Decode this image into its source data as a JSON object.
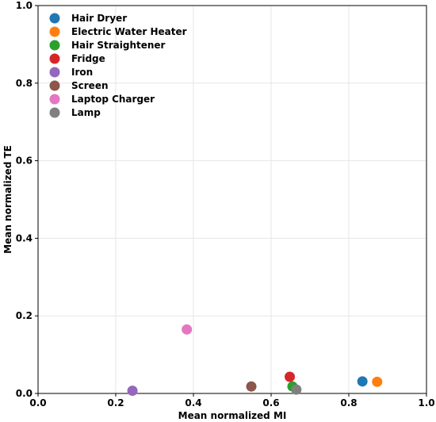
{
  "chart_data": {
    "type": "scatter",
    "xlabel": "Mean normalized MI",
    "ylabel": "Mean normalized TE",
    "xlim": [
      0,
      1
    ],
    "ylim": [
      0,
      1
    ],
    "grid": true,
    "legend_position": "top-left",
    "x_ticks": [
      "0.0",
      "0.2",
      "0.4",
      "0.6",
      "0.8",
      "1.0"
    ],
    "y_ticks": [
      "0.0",
      "0.2",
      "0.4",
      "0.6",
      "0.8",
      "1.0"
    ],
    "series": [
      {
        "name": "Hair Dryer",
        "color": "#1f77b4",
        "x": 0.835,
        "y": 0.031
      },
      {
        "name": "Electric Water Heater",
        "color": "#ff7f0e",
        "x": 0.873,
        "y": 0.03
      },
      {
        "name": "Hair Straightener",
        "color": "#2ca02c",
        "x": 0.655,
        "y": 0.018
      },
      {
        "name": "Fridge",
        "color": "#d62728",
        "x": 0.648,
        "y": 0.043
      },
      {
        "name": "Iron",
        "color": "#9467bd",
        "x": 0.243,
        "y": 0.007
      },
      {
        "name": "Screen",
        "color": "#8c564b",
        "x": 0.549,
        "y": 0.018
      },
      {
        "name": "Laptop Charger",
        "color": "#e377c2",
        "x": 0.383,
        "y": 0.165
      },
      {
        "name": "Lamp",
        "color": "#7f7f7f",
        "x": 0.665,
        "y": 0.01
      }
    ]
  }
}
